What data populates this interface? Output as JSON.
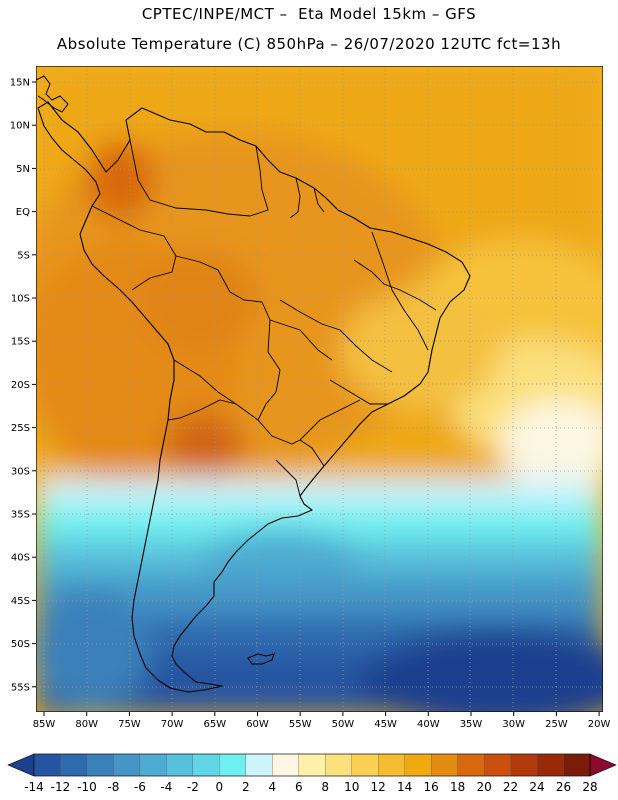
{
  "header": {
    "line1": "CPTEC/INPE/MCT –  Eta Model 15km – GFS",
    "line2": "Absolute Temperature (C) 850hPa – 26/07/2020 12UTC fct=13h"
  },
  "map": {
    "lat_labels": [
      "15N",
      "10N",
      "5N",
      "EQ",
      "5S",
      "10S",
      "15S",
      "20S",
      "25S",
      "30S",
      "35S",
      "40S",
      "45S",
      "50S",
      "55S"
    ],
    "lon_labels": [
      "85W",
      "80W",
      "75W",
      "70W",
      "65W",
      "60W",
      "55W",
      "50W",
      "45W",
      "40W",
      "35W",
      "30W",
      "25W",
      "20W"
    ],
    "lat_range": [
      15,
      -57
    ],
    "lon_range": [
      -86,
      -20
    ],
    "gridlines": true
  },
  "colorbar": {
    "ticks": [
      "-14",
      "-12",
      "-10",
      "-8",
      "-6",
      "-4",
      "-2",
      "0",
      "2",
      "4",
      "6",
      "8",
      "10",
      "12",
      "14",
      "16",
      "18",
      "20",
      "22",
      "24",
      "26",
      "28"
    ],
    "colors": [
      "#1c3f8e",
      "#2555a0",
      "#2f6aae",
      "#3a80ba",
      "#4596c6",
      "#4eabd2",
      "#57c0dc",
      "#62d6e6",
      "#6ff0f0",
      "#cdf3fb",
      "#fdf7e2",
      "#fdf0a8",
      "#fbe07e",
      "#f9d054",
      "#f4bc30",
      "#eeaa10",
      "#e38a10",
      "#d86910",
      "#c9500e",
      "#b23a0c",
      "#982a0a",
      "#7a1d08",
      "#8b0a2e"
    ]
  }
}
